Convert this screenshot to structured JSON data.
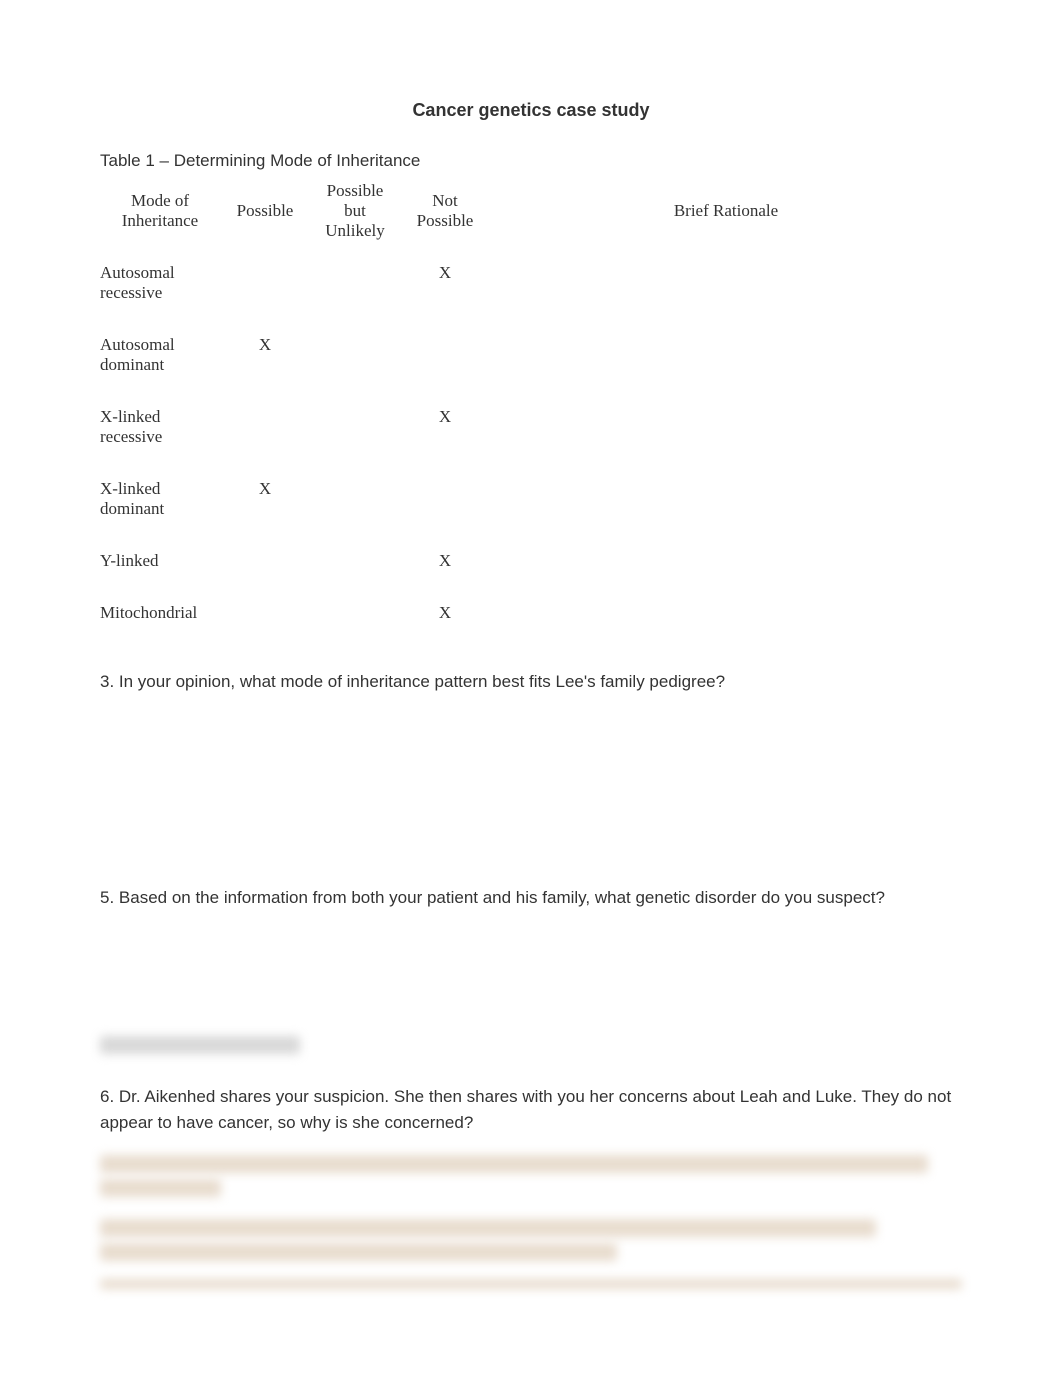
{
  "title": "Cancer genetics case study",
  "table": {
    "caption": "Table 1 – Determining Mode of Inheritance",
    "headers": {
      "mode": "Mode of Inheritance",
      "possible": "Possible",
      "possible_unlikely": "Possible but Unlikely",
      "not_possible": "Not Possible",
      "rationale": "Brief Rationale"
    },
    "rows": [
      {
        "mode": "Autosomal recessive",
        "possible": "",
        "possible_unlikely": "",
        "not_possible": "X",
        "rationale": ""
      },
      {
        "mode": "Autosomal dominant",
        "possible": "X",
        "possible_unlikely": "",
        "not_possible": "",
        "rationale": ""
      },
      {
        "mode": "X-linked recessive",
        "possible": "",
        "possible_unlikely": "",
        "not_possible": "X",
        "rationale": ""
      },
      {
        "mode": "X-linked dominant",
        "possible": "X",
        "possible_unlikely": "",
        "not_possible": "",
        "rationale": ""
      },
      {
        "mode": "Y-linked",
        "possible": "",
        "possible_unlikely": "",
        "not_possible": "X",
        "rationale": ""
      },
      {
        "mode": "Mitochondrial",
        "possible": "",
        "possible_unlikely": "",
        "not_possible": "X",
        "rationale": ""
      }
    ]
  },
  "questions": {
    "q3": "3. In your opinion, what mode of inheritance pattern best fits Lee's family pedigree?",
    "q5": "5. Based on the information from both your patient and his family, what genetic disorder do you suspect?",
    "q6": "6. Dr. Aikenhed shares your suspicion. She then shares with you her concerns about Leah and Luke. They do not appear to have cancer, so why is she concerned?"
  }
}
